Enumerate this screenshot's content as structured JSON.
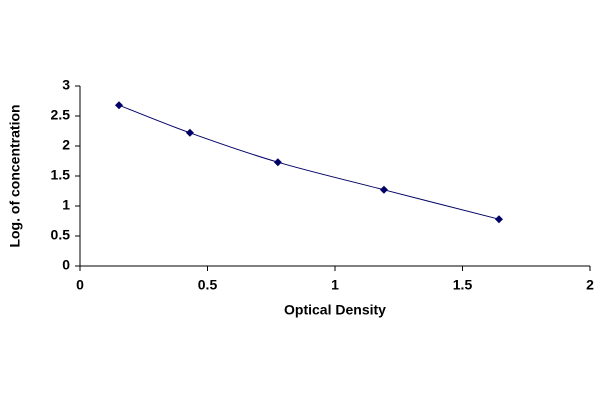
{
  "chart_data": {
    "type": "scatter",
    "x_label": "Optical Density",
    "y_label": "Log. of concentration",
    "series": [
      {
        "color": "#000066",
        "x": [
          0.153,
          0.431,
          0.776,
          1.192,
          1.643
        ],
        "values": [
          2.68,
          2.22,
          1.73,
          1.27,
          0.78
        ]
      }
    ],
    "xlim": [
      0,
      2
    ],
    "xticks": [
      0,
      0.5,
      1,
      1.5,
      2
    ],
    "ylim": [
      0,
      3
    ],
    "yticks": [
      0,
      0.5,
      1,
      1.5,
      2,
      2.5,
      3
    ],
    "smooth_line": true
  }
}
